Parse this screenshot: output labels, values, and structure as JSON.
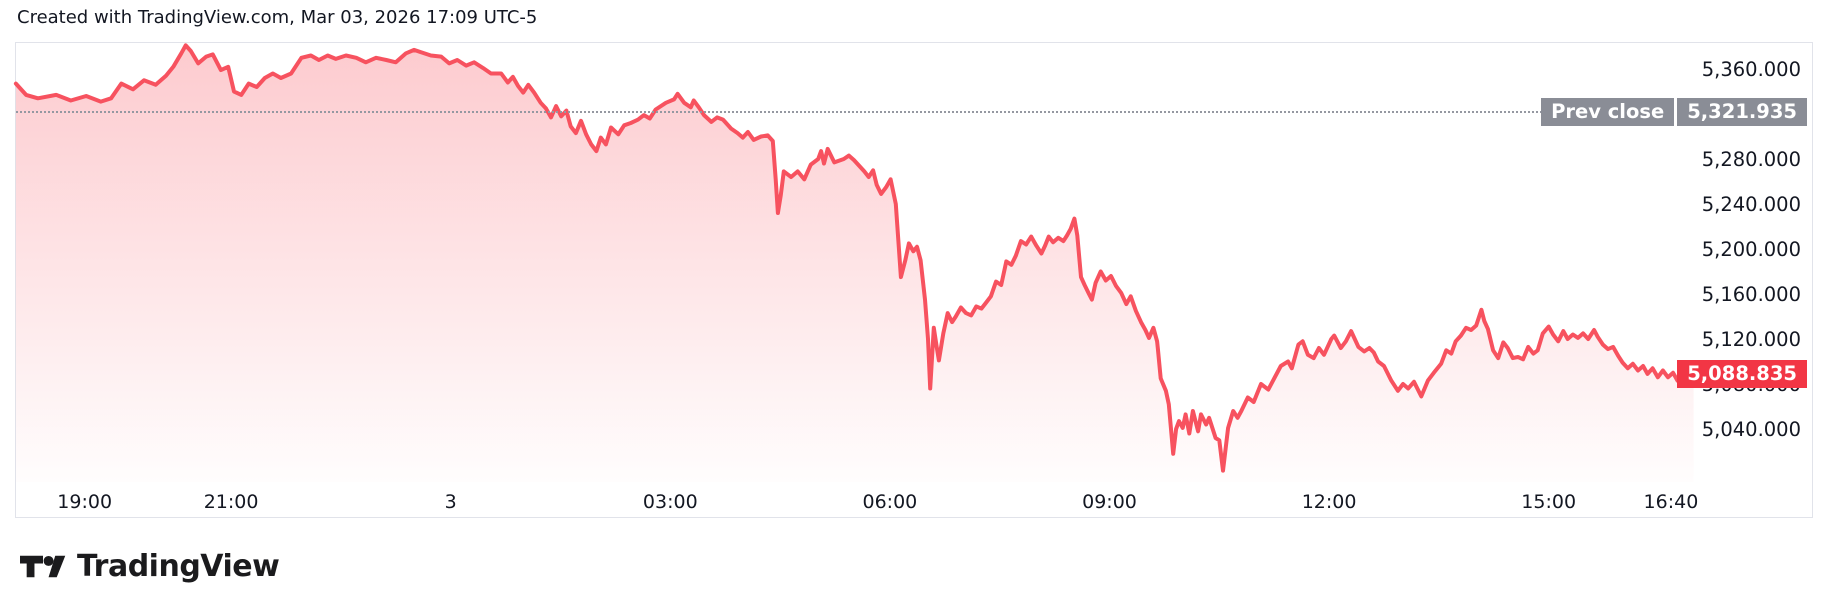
{
  "header": {
    "credit": "Created with TradingView.com, Mar 03, 2026 17:09 UTC-5"
  },
  "footer": {
    "brand": "TradingView"
  },
  "chart_data": {
    "type": "area",
    "title": "",
    "xlabel": "",
    "ylabel": "",
    "x_axis": {
      "note": "hours measured from 18:00 of Mar 02 (prev session start); session ends 17:00 Mar 03",
      "hours_range": [
        0,
        23.4
      ],
      "ticks": [
        {
          "label": "19:00",
          "hour": 1
        },
        {
          "label": "21:00",
          "hour": 3
        },
        {
          "label": "3",
          "hour": 6
        },
        {
          "label": "03:00",
          "hour": 9
        },
        {
          "label": "06:00",
          "hour": 12
        },
        {
          "label": "09:00",
          "hour": 15
        },
        {
          "label": "12:00",
          "hour": 18
        },
        {
          "label": "15:00",
          "hour": 21
        },
        {
          "label": "16:40",
          "hour": 22.67
        }
      ]
    },
    "y_axis": {
      "price_range_visible": [
        4993,
        5383
      ],
      "ticks": [
        {
          "label": "5,360.000",
          "value": 5360,
          "behind_badge": false
        },
        {
          "label": "5,280.000",
          "value": 5280,
          "behind_badge": false
        },
        {
          "label": "5,240.000",
          "value": 5240,
          "behind_badge": false
        },
        {
          "label": "5,200.000",
          "value": 5200,
          "behind_badge": false
        },
        {
          "label": "5,160.000",
          "value": 5160,
          "behind_badge": false
        },
        {
          "label": "5,120.000",
          "value": 5120,
          "behind_badge": false
        },
        {
          "label": "5,080.000",
          "value": 5080,
          "behind_badge": true
        },
        {
          "label": "5,040.000",
          "value": 5040,
          "behind_badge": false
        }
      ]
    },
    "prev_close": {
      "label": "Prev close",
      "display": "5,321.935",
      "value": 5321.935
    },
    "last": {
      "display": "5,088.835",
      "value": 5088.835
    },
    "colors": {
      "line": "#F7525F",
      "fill_top": "rgba(247,82,95,0.30)",
      "fill_bottom": "rgba(247,82,95,0.01)",
      "last_badge": "#F23645",
      "prev_badge": "#8A8D96",
      "dotted_line": "#9598A1",
      "border": "#E1E3EA",
      "text": "#131722"
    },
    "series": [
      [
        0.06,
        5347
      ],
      [
        0.2,
        5337
      ],
      [
        0.36,
        5334
      ],
      [
        0.61,
        5337
      ],
      [
        0.81,
        5332
      ],
      [
        1.02,
        5336
      ],
      [
        1.22,
        5331
      ],
      [
        1.36,
        5334
      ],
      [
        1.5,
        5347
      ],
      [
        1.66,
        5342
      ],
      [
        1.81,
        5350
      ],
      [
        1.97,
        5346
      ],
      [
        2.11,
        5354
      ],
      [
        2.21,
        5362
      ],
      [
        2.32,
        5374
      ],
      [
        2.38,
        5381
      ],
      [
        2.45,
        5376
      ],
      [
        2.55,
        5365
      ],
      [
        2.66,
        5371
      ],
      [
        2.75,
        5373
      ],
      [
        2.86,
        5359
      ],
      [
        2.96,
        5362
      ],
      [
        3.04,
        5340
      ],
      [
        3.14,
        5337
      ],
      [
        3.24,
        5347
      ],
      [
        3.35,
        5344
      ],
      [
        3.46,
        5352
      ],
      [
        3.57,
        5356
      ],
      [
        3.68,
        5352
      ],
      [
        3.82,
        5356
      ],
      [
        3.96,
        5370
      ],
      [
        4.09,
        5372
      ],
      [
        4.2,
        5368
      ],
      [
        4.32,
        5372
      ],
      [
        4.43,
        5369
      ],
      [
        4.57,
        5372
      ],
      [
        4.71,
        5370
      ],
      [
        4.84,
        5366
      ],
      [
        4.98,
        5370
      ],
      [
        5.12,
        5368
      ],
      [
        5.25,
        5366
      ],
      [
        5.39,
        5374
      ],
      [
        5.5,
        5377
      ],
      [
        5.59,
        5375
      ],
      [
        5.73,
        5372
      ],
      [
        5.87,
        5371
      ],
      [
        5.98,
        5365
      ],
      [
        6.09,
        5368
      ],
      [
        6.21,
        5363
      ],
      [
        6.32,
        5366
      ],
      [
        6.44,
        5361
      ],
      [
        6.55,
        5356
      ],
      [
        6.69,
        5356
      ],
      [
        6.78,
        5348
      ],
      [
        6.85,
        5353
      ],
      [
        6.92,
        5345
      ],
      [
        6.99,
        5339
      ],
      [
        7.06,
        5346
      ],
      [
        7.14,
        5339
      ],
      [
        7.23,
        5330
      ],
      [
        7.3,
        5325
      ],
      [
        7.37,
        5317
      ],
      [
        7.44,
        5327
      ],
      [
        7.51,
        5318
      ],
      [
        7.58,
        5323
      ],
      [
        7.64,
        5309
      ],
      [
        7.71,
        5303
      ],
      [
        7.78,
        5314
      ],
      [
        7.85,
        5302
      ],
      [
        7.92,
        5293
      ],
      [
        7.99,
        5287
      ],
      [
        8.05,
        5299
      ],
      [
        8.12,
        5293
      ],
      [
        8.19,
        5308
      ],
      [
        8.29,
        5302
      ],
      [
        8.37,
        5310
      ],
      [
        8.46,
        5312
      ],
      [
        8.56,
        5315
      ],
      [
        8.64,
        5319
      ],
      [
        8.72,
        5316
      ],
      [
        8.8,
        5324
      ],
      [
        8.94,
        5330
      ],
      [
        9.05,
        5333
      ],
      [
        9.1,
        5338
      ],
      [
        9.19,
        5330
      ],
      [
        9.28,
        5326
      ],
      [
        9.32,
        5332
      ],
      [
        9.39,
        5326
      ],
      [
        9.46,
        5319
      ],
      [
        9.56,
        5313
      ],
      [
        9.64,
        5317
      ],
      [
        9.72,
        5315
      ],
      [
        9.83,
        5307
      ],
      [
        9.92,
        5303
      ],
      [
        9.99,
        5299
      ],
      [
        10.06,
        5304
      ],
      [
        10.14,
        5297
      ],
      [
        10.24,
        5300
      ],
      [
        10.33,
        5301
      ],
      [
        10.4,
        5296
      ],
      [
        10.44,
        5262
      ],
      [
        10.47,
        5232
      ],
      [
        10.51,
        5248
      ],
      [
        10.55,
        5269
      ],
      [
        10.65,
        5264
      ],
      [
        10.74,
        5269
      ],
      [
        10.83,
        5262
      ],
      [
        10.92,
        5275
      ],
      [
        11.02,
        5280
      ],
      [
        11.06,
        5287
      ],
      [
        11.1,
        5276
      ],
      [
        11.15,
        5289
      ],
      [
        11.24,
        5277
      ],
      [
        11.37,
        5280
      ],
      [
        11.44,
        5283
      ],
      [
        11.51,
        5279
      ],
      [
        11.65,
        5269
      ],
      [
        11.71,
        5264
      ],
      [
        11.77,
        5270
      ],
      [
        11.82,
        5257
      ],
      [
        11.88,
        5249
      ],
      [
        11.95,
        5255
      ],
      [
        12.01,
        5262
      ],
      [
        12.08,
        5240
      ],
      [
        12.15,
        5175
      ],
      [
        12.21,
        5190
      ],
      [
        12.26,
        5205
      ],
      [
        12.32,
        5198
      ],
      [
        12.37,
        5202
      ],
      [
        12.42,
        5190
      ],
      [
        12.48,
        5155
      ],
      [
        12.52,
        5120
      ],
      [
        12.55,
        5076
      ],
      [
        12.6,
        5130
      ],
      [
        12.64,
        5113
      ],
      [
        12.67,
        5101
      ],
      [
        12.73,
        5125
      ],
      [
        12.79,
        5143
      ],
      [
        12.85,
        5135
      ],
      [
        12.9,
        5140
      ],
      [
        12.97,
        5148
      ],
      [
        13.04,
        5143
      ],
      [
        13.11,
        5141
      ],
      [
        13.18,
        5149
      ],
      [
        13.25,
        5147
      ],
      [
        13.31,
        5152
      ],
      [
        13.38,
        5158
      ],
      [
        13.45,
        5171
      ],
      [
        13.52,
        5168
      ],
      [
        13.59,
        5189
      ],
      [
        13.66,
        5186
      ],
      [
        13.72,
        5194
      ],
      [
        13.79,
        5207
      ],
      [
        13.86,
        5204
      ],
      [
        13.93,
        5211
      ],
      [
        14.0,
        5203
      ],
      [
        14.07,
        5196
      ],
      [
        14.12,
        5203
      ],
      [
        14.17,
        5211
      ],
      [
        14.23,
        5206
      ],
      [
        14.3,
        5210
      ],
      [
        14.37,
        5207
      ],
      [
        14.42,
        5212
      ],
      [
        14.47,
        5218
      ],
      [
        14.52,
        5227
      ],
      [
        14.56,
        5212
      ],
      [
        14.61,
        5175
      ],
      [
        14.66,
        5168
      ],
      [
        14.72,
        5160
      ],
      [
        14.76,
        5155
      ],
      [
        14.81,
        5170
      ],
      [
        14.88,
        5180
      ],
      [
        14.95,
        5172
      ],
      [
        15.02,
        5176
      ],
      [
        15.09,
        5167
      ],
      [
        15.16,
        5161
      ],
      [
        15.23,
        5151
      ],
      [
        15.29,
        5158
      ],
      [
        15.36,
        5145
      ],
      [
        15.43,
        5135
      ],
      [
        15.49,
        5128
      ],
      [
        15.54,
        5121
      ],
      [
        15.6,
        5130
      ],
      [
        15.65,
        5118
      ],
      [
        15.66,
        5112
      ],
      [
        15.7,
        5085
      ],
      [
        15.77,
        5074
      ],
      [
        15.81,
        5062
      ],
      [
        15.87,
        5018
      ],
      [
        15.91,
        5040
      ],
      [
        15.95,
        5047
      ],
      [
        16.0,
        5041
      ],
      [
        16.04,
        5053
      ],
      [
        16.09,
        5036
      ],
      [
        16.14,
        5056
      ],
      [
        16.21,
        5038
      ],
      [
        16.25,
        5053
      ],
      [
        16.32,
        5044
      ],
      [
        16.36,
        5050
      ],
      [
        16.41,
        5040
      ],
      [
        16.45,
        5032
      ],
      [
        16.5,
        5030
      ],
      [
        16.55,
        5003
      ],
      [
        16.62,
        5041
      ],
      [
        16.69,
        5056
      ],
      [
        16.75,
        5050
      ],
      [
        16.8,
        5056
      ],
      [
        16.89,
        5068
      ],
      [
        16.97,
        5064
      ],
      [
        17.07,
        5080
      ],
      [
        17.17,
        5075
      ],
      [
        17.25,
        5085
      ],
      [
        17.34,
        5096
      ],
      [
        17.44,
        5100
      ],
      [
        17.49,
        5094
      ],
      [
        17.58,
        5115
      ],
      [
        17.64,
        5118
      ],
      [
        17.71,
        5106
      ],
      [
        17.79,
        5103
      ],
      [
        17.86,
        5112
      ],
      [
        17.93,
        5106
      ],
      [
        18.03,
        5120
      ],
      [
        18.07,
        5123
      ],
      [
        18.16,
        5112
      ],
      [
        18.23,
        5118
      ],
      [
        18.3,
        5127
      ],
      [
        18.4,
        5113
      ],
      [
        18.48,
        5109
      ],
      [
        18.55,
        5112
      ],
      [
        18.61,
        5108
      ],
      [
        18.67,
        5100
      ],
      [
        18.75,
        5096
      ],
      [
        18.85,
        5083
      ],
      [
        18.94,
        5074
      ],
      [
        19.01,
        5080
      ],
      [
        19.08,
        5076
      ],
      [
        19.16,
        5082
      ],
      [
        19.26,
        5069
      ],
      [
        19.35,
        5083
      ],
      [
        19.43,
        5090
      ],
      [
        19.53,
        5098
      ],
      [
        19.6,
        5110
      ],
      [
        19.67,
        5107
      ],
      [
        19.73,
        5118
      ],
      [
        19.8,
        5123
      ],
      [
        19.87,
        5130
      ],
      [
        19.94,
        5128
      ],
      [
        20.01,
        5132
      ],
      [
        20.08,
        5146
      ],
      [
        20.12,
        5136
      ],
      [
        20.17,
        5129
      ],
      [
        20.24,
        5110
      ],
      [
        20.31,
        5103
      ],
      [
        20.38,
        5117
      ],
      [
        20.44,
        5112
      ],
      [
        20.51,
        5103
      ],
      [
        20.58,
        5104
      ],
      [
        20.65,
        5102
      ],
      [
        20.72,
        5113
      ],
      [
        20.79,
        5107
      ],
      [
        20.85,
        5110
      ],
      [
        20.92,
        5125
      ],
      [
        21.0,
        5131
      ],
      [
        21.06,
        5124
      ],
      [
        21.13,
        5118
      ],
      [
        21.2,
        5127
      ],
      [
        21.26,
        5120
      ],
      [
        21.33,
        5124
      ],
      [
        21.4,
        5121
      ],
      [
        21.47,
        5125
      ],
      [
        21.54,
        5120
      ],
      [
        21.62,
        5128
      ],
      [
        21.67,
        5122
      ],
      [
        21.74,
        5115
      ],
      [
        21.81,
        5111
      ],
      [
        21.88,
        5113
      ],
      [
        21.95,
        5105
      ],
      [
        22.01,
        5099
      ],
      [
        22.08,
        5094
      ],
      [
        22.15,
        5098
      ],
      [
        22.22,
        5092
      ],
      [
        22.29,
        5096
      ],
      [
        22.35,
        5089
      ],
      [
        22.42,
        5094
      ],
      [
        22.49,
        5086
      ],
      [
        22.56,
        5092
      ],
      [
        22.63,
        5086
      ],
      [
        22.7,
        5090
      ],
      [
        22.76,
        5083
      ],
      [
        22.83,
        5088
      ],
      [
        22.9,
        5085
      ],
      [
        22.98,
        5088.835
      ]
    ]
  }
}
